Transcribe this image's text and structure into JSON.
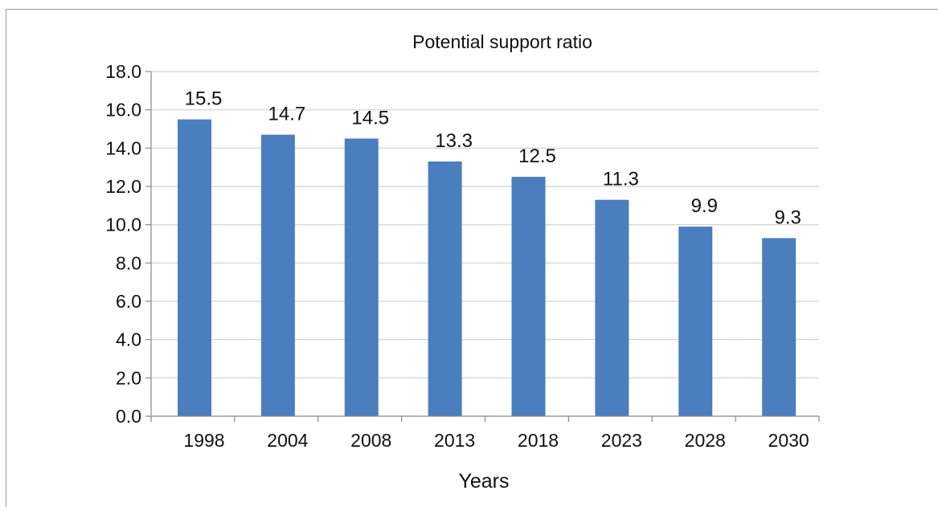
{
  "chart_data": {
    "type": "bar",
    "title": "Potential support ratio",
    "xlabel": "Years",
    "ylabel": "",
    "categories": [
      "1998",
      "2004",
      "2008",
      "2013",
      "2018",
      "2023",
      "2028",
      "2030"
    ],
    "values": [
      15.5,
      14.7,
      14.5,
      13.3,
      12.5,
      11.3,
      9.9,
      9.3
    ],
    "value_labels": [
      "15.5",
      "14.7",
      "14.5",
      "13.3",
      "12.5",
      "11.3",
      "9.9",
      "9.3"
    ],
    "y_ticks": [
      "0.0",
      "2.0",
      "4.0",
      "6.0",
      "8.0",
      "10.0",
      "12.0",
      "14.0",
      "16.0",
      "18.0"
    ],
    "ylim": [
      0,
      18
    ],
    "grid": true,
    "legend": false,
    "bar_color": "#4a7ebf",
    "grid_color": "#d0d0d0",
    "axis_color": "#888888"
  }
}
